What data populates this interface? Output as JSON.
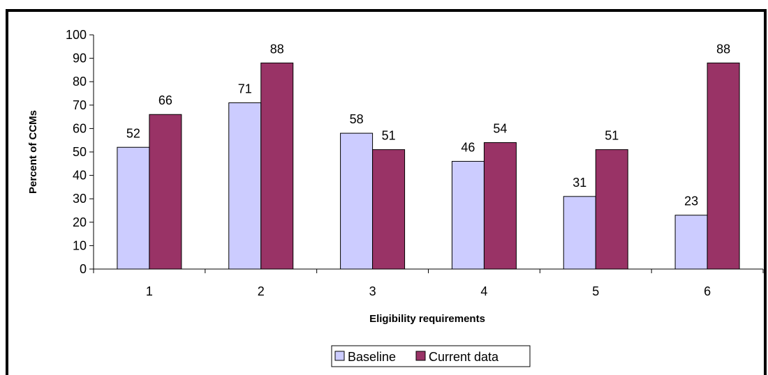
{
  "chart_data": {
    "type": "bar",
    "categories": [
      "1",
      "2",
      "3",
      "4",
      "5",
      "6"
    ],
    "series": [
      {
        "name": "Baseline",
        "values": [
          52,
          71,
          58,
          46,
          31,
          23
        ],
        "color": "#ccccff"
      },
      {
        "name": "Current data",
        "values": [
          66,
          88,
          51,
          54,
          51,
          88
        ],
        "color": "#993366"
      }
    ],
    "xlabel": "Eligibility requirements",
    "ylabel": "Percent of CCMs",
    "ylim": [
      0,
      100
    ],
    "yticks": [
      0,
      10,
      20,
      30,
      40,
      50,
      60,
      70,
      80,
      90,
      100
    ],
    "data_labels": true,
    "grid": false,
    "legend_position": "bottom-center"
  }
}
